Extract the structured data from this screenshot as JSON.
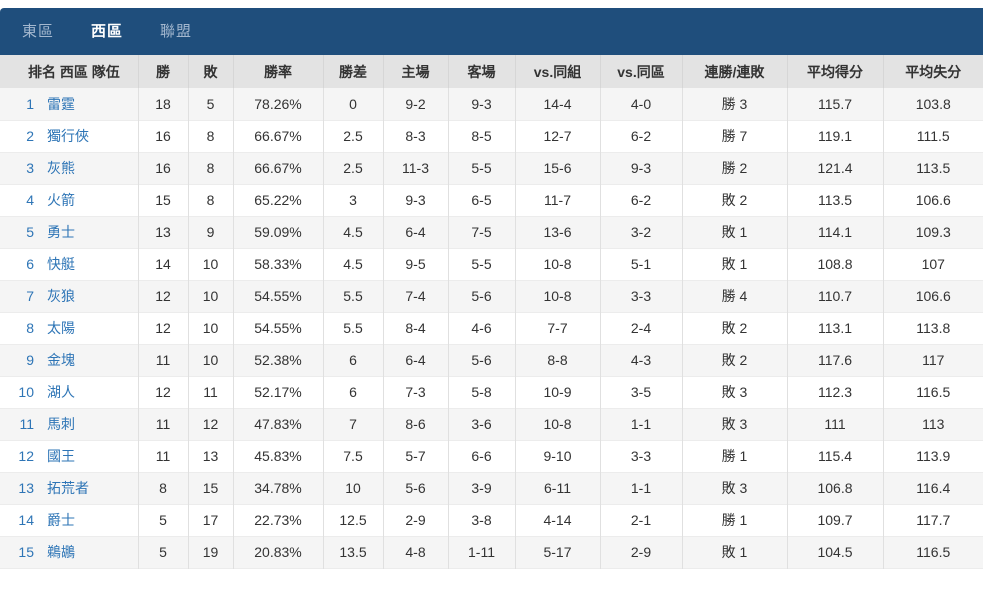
{
  "colors": {
    "tabbar_bg": "#1f4e7c",
    "tab_inactive": "#a4b8cf",
    "tab_active": "#ffffff",
    "link_blue": "#2e75b6",
    "header_bg": "#e3e3e3",
    "row_alt_bg": "#f5f5f5"
  },
  "tabs": {
    "items": [
      {
        "label": "東區",
        "active": false
      },
      {
        "label": "西區",
        "active": true
      },
      {
        "label": "聯盟",
        "active": false
      }
    ]
  },
  "table": {
    "columns": [
      "排名 西區 隊伍",
      "勝",
      "敗",
      "勝率",
      "勝差",
      "主場",
      "客場",
      "vs.同組",
      "vs.同區",
      "連勝/連敗",
      "平均得分",
      "平均失分"
    ],
    "rows": [
      {
        "rank": "1",
        "team": "雷霆",
        "wins": "18",
        "losses": "5",
        "pct": "78.26%",
        "gb": "0",
        "home": "9-2",
        "away": "9-3",
        "vs_group": "14-4",
        "vs_division": "4-0",
        "streak": "勝 3",
        "avg_pts": "115.7",
        "avg_pts_allowed": "103.8"
      },
      {
        "rank": "2",
        "team": "獨行俠",
        "wins": "16",
        "losses": "8",
        "pct": "66.67%",
        "gb": "2.5",
        "home": "8-3",
        "away": "8-5",
        "vs_group": "12-7",
        "vs_division": "6-2",
        "streak": "勝 7",
        "avg_pts": "119.1",
        "avg_pts_allowed": "111.5"
      },
      {
        "rank": "3",
        "team": "灰熊",
        "wins": "16",
        "losses": "8",
        "pct": "66.67%",
        "gb": "2.5",
        "home": "11-3",
        "away": "5-5",
        "vs_group": "15-6",
        "vs_division": "9-3",
        "streak": "勝 2",
        "avg_pts": "121.4",
        "avg_pts_allowed": "113.5"
      },
      {
        "rank": "4",
        "team": "火箭",
        "wins": "15",
        "losses": "8",
        "pct": "65.22%",
        "gb": "3",
        "home": "9-3",
        "away": "6-5",
        "vs_group": "11-7",
        "vs_division": "6-2",
        "streak": "敗 2",
        "avg_pts": "113.5",
        "avg_pts_allowed": "106.6"
      },
      {
        "rank": "5",
        "team": "勇士",
        "wins": "13",
        "losses": "9",
        "pct": "59.09%",
        "gb": "4.5",
        "home": "6-4",
        "away": "7-5",
        "vs_group": "13-6",
        "vs_division": "3-2",
        "streak": "敗 1",
        "avg_pts": "114.1",
        "avg_pts_allowed": "109.3"
      },
      {
        "rank": "6",
        "team": "快艇",
        "wins": "14",
        "losses": "10",
        "pct": "58.33%",
        "gb": "4.5",
        "home": "9-5",
        "away": "5-5",
        "vs_group": "10-8",
        "vs_division": "5-1",
        "streak": "敗 1",
        "avg_pts": "108.8",
        "avg_pts_allowed": "107"
      },
      {
        "rank": "7",
        "team": "灰狼",
        "wins": "12",
        "losses": "10",
        "pct": "54.55%",
        "gb": "5.5",
        "home": "7-4",
        "away": "5-6",
        "vs_group": "10-8",
        "vs_division": "3-3",
        "streak": "勝 4",
        "avg_pts": "110.7",
        "avg_pts_allowed": "106.6"
      },
      {
        "rank": "8",
        "team": "太陽",
        "wins": "12",
        "losses": "10",
        "pct": "54.55%",
        "gb": "5.5",
        "home": "8-4",
        "away": "4-6",
        "vs_group": "7-7",
        "vs_division": "2-4",
        "streak": "敗 2",
        "avg_pts": "113.1",
        "avg_pts_allowed": "113.8"
      },
      {
        "rank": "9",
        "team": "金塊",
        "wins": "11",
        "losses": "10",
        "pct": "52.38%",
        "gb": "6",
        "home": "6-4",
        "away": "5-6",
        "vs_group": "8-8",
        "vs_division": "4-3",
        "streak": "敗 2",
        "avg_pts": "117.6",
        "avg_pts_allowed": "117"
      },
      {
        "rank": "10",
        "team": "湖人",
        "wins": "12",
        "losses": "11",
        "pct": "52.17%",
        "gb": "6",
        "home": "7-3",
        "away": "5-8",
        "vs_group": "10-9",
        "vs_division": "3-5",
        "streak": "敗 3",
        "avg_pts": "112.3",
        "avg_pts_allowed": "116.5"
      },
      {
        "rank": "11",
        "team": "馬刺",
        "wins": "11",
        "losses": "12",
        "pct": "47.83%",
        "gb": "7",
        "home": "8-6",
        "away": "3-6",
        "vs_group": "10-8",
        "vs_division": "1-1",
        "streak": "敗 3",
        "avg_pts": "111",
        "avg_pts_allowed": "113"
      },
      {
        "rank": "12",
        "team": "國王",
        "wins": "11",
        "losses": "13",
        "pct": "45.83%",
        "gb": "7.5",
        "home": "5-7",
        "away": "6-6",
        "vs_group": "9-10",
        "vs_division": "3-3",
        "streak": "勝 1",
        "avg_pts": "115.4",
        "avg_pts_allowed": "113.9"
      },
      {
        "rank": "13",
        "team": "拓荒者",
        "wins": "8",
        "losses": "15",
        "pct": "34.78%",
        "gb": "10",
        "home": "5-6",
        "away": "3-9",
        "vs_group": "6-11",
        "vs_division": "1-1",
        "streak": "敗 3",
        "avg_pts": "106.8",
        "avg_pts_allowed": "116.4"
      },
      {
        "rank": "14",
        "team": "爵士",
        "wins": "5",
        "losses": "17",
        "pct": "22.73%",
        "gb": "12.5",
        "home": "2-9",
        "away": "3-8",
        "vs_group": "4-14",
        "vs_division": "2-1",
        "streak": "勝 1",
        "avg_pts": "109.7",
        "avg_pts_allowed": "117.7"
      },
      {
        "rank": "15",
        "team": "鵜鶘",
        "wins": "5",
        "losses": "19",
        "pct": "20.83%",
        "gb": "13.5",
        "home": "4-8",
        "away": "1-11",
        "vs_group": "5-17",
        "vs_division": "2-9",
        "streak": "敗 1",
        "avg_pts": "104.5",
        "avg_pts_allowed": "116.5"
      }
    ]
  }
}
